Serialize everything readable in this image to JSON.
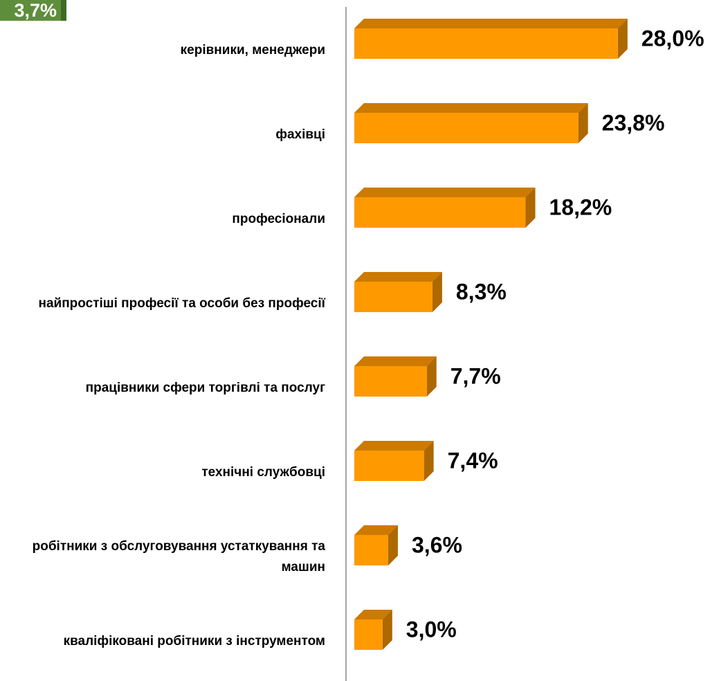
{
  "chart_data": {
    "type": "bar",
    "orientation": "horizontal",
    "annotation": "3,7%",
    "categories": [
      "керівники, менеджери",
      "фахівці",
      "професіонали",
      "найпростіші професії та особи без професії",
      "працівники сфери торгівлі та послуг",
      "технічні службовці",
      "робітники з обслуговування устаткування та машин",
      "кваліфіковані робітники з інструментом"
    ],
    "values": [
      28.0,
      23.8,
      18.2,
      8.3,
      7.7,
      7.4,
      3.6,
      3.0
    ],
    "value_labels": [
      "28,0%",
      "23,8%",
      "18,2%",
      "8,3%",
      "7,7%",
      "7,4%",
      "3,6%",
      "3,0%"
    ],
    "color": "#ff9900"
  }
}
